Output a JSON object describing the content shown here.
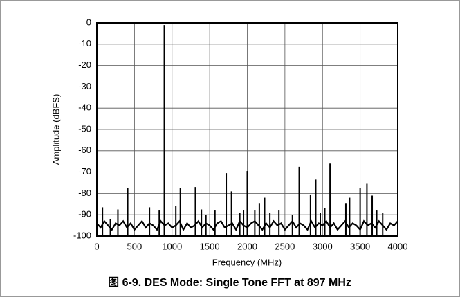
{
  "chart_data": {
    "type": "fft",
    "caption": "图 6-9. DES Mode: Single Tone FFT at 897 MHz",
    "x_label": "Frequency (MHz)",
    "y_label": "Amplitude (dBFS)",
    "xlim": [
      0,
      4000
    ],
    "ylim": [
      -100,
      0
    ],
    "xticks": [
      0,
      500,
      1000,
      1500,
      2000,
      2500,
      3000,
      3500,
      4000
    ],
    "yticks": [
      0,
      -10,
      -20,
      -30,
      -40,
      -50,
      -60,
      -70,
      -80,
      -90,
      -100
    ],
    "grid": true,
    "series": [
      {
        "color": "#000000",
        "x": [
          0,
          50,
          100,
          150,
          200,
          250,
          300,
          350,
          400,
          450,
          500,
          550,
          600,
          650,
          700,
          750,
          800,
          850,
          900,
          950,
          1000,
          1050,
          1100,
          1150,
          1200,
          1250,
          1300,
          1350,
          1400,
          1450,
          1500,
          1550,
          1600,
          1650,
          1700,
          1750,
          1800,
          1850,
          1900,
          1950,
          2000,
          2050,
          2100,
          2150,
          2200,
          2250,
          2300,
          2350,
          2400,
          2450,
          2500,
          2550,
          2600,
          2650,
          2700,
          2750,
          2800,
          2850,
          2900,
          2950,
          3000,
          3050,
          3100,
          3150,
          3200,
          3250,
          3300,
          3350,
          3400,
          3450,
          3500,
          3550,
          3600,
          3650,
          3700,
          3750,
          3800,
          3850,
          3900,
          3950,
          4000
        ],
        "values": [
          -94,
          -96,
          -93,
          -95,
          -97,
          -94,
          -95,
          -93,
          -96,
          -94,
          -97,
          -95,
          -93,
          -96,
          -94,
          -95,
          -97,
          -93,
          -95,
          -94,
          -96,
          -95,
          -93,
          -97,
          -94,
          -96,
          -95,
          -93,
          -96,
          -94,
          -95,
          -97,
          -94,
          -93,
          -96,
          -95,
          -94,
          -97,
          -93,
          -95,
          -96,
          -94,
          -93,
          -95,
          -97,
          -94,
          -96,
          -93,
          -95,
          -94,
          -97,
          -95,
          -93,
          -96,
          -94,
          -95,
          -97,
          -93,
          -96,
          -94,
          -95,
          -93,
          -96,
          -94,
          -97,
          -95,
          -93,
          -96,
          -94,
          -95,
          -97,
          -93,
          -95,
          -94,
          -96,
          -93,
          -95,
          -97,
          -94,
          -95,
          -93
        ]
      },
      {
        "color": "#000000",
        "x": [
          75,
          180,
          280,
          410,
          700,
          830,
          897,
          1050,
          1110,
          1310,
          1390,
          1450,
          1570,
          1720,
          1790,
          1900,
          1950,
          2000,
          2100,
          2160,
          2230,
          2300,
          2420,
          2600,
          2690,
          2840,
          2910,
          2970,
          3030,
          3100,
          3310,
          3360,
          3500,
          3590,
          3660,
          3720,
          3800
        ],
        "values": [
          -86.5,
          -92,
          -87.5,
          -77.5,
          -86.5,
          -88,
          -1,
          -86,
          -77.5,
          -77,
          -87.5,
          -90,
          -88,
          -70.5,
          -79,
          -89,
          -88,
          -69.5,
          -88,
          -84.5,
          -82,
          -89,
          -88,
          -90,
          -67.5,
          -80.5,
          -73.5,
          -89,
          -87,
          -66,
          -84.5,
          -82,
          -77.5,
          -75.5,
          -81,
          -88,
          -89
        ]
      }
    ]
  }
}
